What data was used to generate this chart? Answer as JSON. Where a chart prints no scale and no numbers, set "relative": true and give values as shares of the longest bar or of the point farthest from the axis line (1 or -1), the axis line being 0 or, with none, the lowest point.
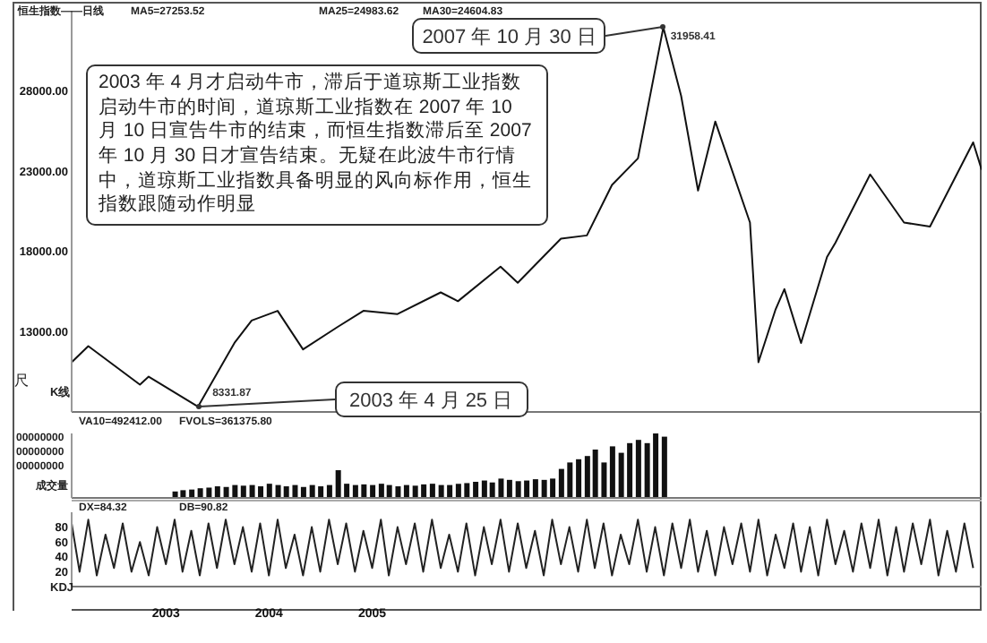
{
  "chart_data": [
    {
      "type": "line",
      "xlim": [
        "2002-02-01",
        "2010-12-01"
      ],
      "ylim": [
        8000,
        33000
      ],
      "yticks": [
        {
          "value": 13000,
          "label": "13000.00"
        },
        {
          "value": 18000,
          "label": "18000.00"
        },
        {
          "value": 23000,
          "label": "23000.00"
        },
        {
          "value": 28000,
          "label": "28000.00"
        }
      ],
      "tick_labels": "y",
      "x": [
        "2002-02",
        "2002-04",
        "2002-10",
        "2002-11",
        "2003-04-25",
        "2003-09",
        "2003-11",
        "2004-02",
        "2004-05",
        "2004-09",
        "2004-12",
        "2005-04",
        "2005-09",
        "2005-11",
        "2006-04",
        "2006-06",
        "2006-11",
        "2007-02",
        "2007-05",
        "2007-08",
        "2007-10-30",
        "2008-01",
        "2008-03",
        "2008-05",
        "2008-09",
        "2008-10",
        "2008-12",
        "2009-01",
        "2009-03",
        "2009-06",
        "2009-07",
        "2009-11",
        "2010-03",
        "2010-06",
        "2010-11",
        "2010-12"
      ],
      "series": [
        {
          "color": "#111111",
          "values": [
            11100,
            12100,
            9700,
            10200,
            8331.87,
            12300,
            13700,
            14300,
            11900,
            13300,
            14300,
            14100,
            15450,
            14900,
            17050,
            16050,
            18800,
            19000,
            22150,
            23800,
            31958.41,
            27700,
            21800,
            26100,
            19800,
            11100,
            14400,
            15650,
            12300,
            17650,
            18550,
            22800,
            19800,
            19550,
            24800,
            23100
          ]
        }
      ],
      "annotations": [
        {
          "text": "2007 年 10 月 30 日",
          "x": "2007-10-30",
          "y": 31958.41
        },
        {
          "text": "31958.41",
          "x": "2007-10-30",
          "y": 31958.41
        },
        {
          "text": "2003 年 4 月 25 日",
          "x": "2003-04-25",
          "y": 8331.87
        },
        {
          "text": "8331.87",
          "x": "2003-04-25",
          "y": 8331.87
        },
        "2003 年 4 月才启动牛市，滞后于道琼斯工业指数启动牛市的时间，道琼斯工业指数在 2007 年 10 月 10 日宣告牛市的结束，而恒生指数滞后至 2007 年 10 月 30 日才宣告结束。无疑在此波牛市行情中，道琼斯工业指数具备明显的风向标作用，恒生指数跟随动作明显",
        "恒生指数——日线",
        "MA5=27253.52",
        "MA25=24983.62",
        "MA30=24604.83",
        "尺",
        "K线"
      ]
    },
    {
      "type": "bar",
      "relative": true,
      "xlim": [
        "2002-02-01",
        "2010-12-01"
      ],
      "tick_labels": false,
      "x": [
        "2003-02",
        "2003-03",
        "2003-04",
        "2003-05",
        "2003-06",
        "2003-07",
        "2003-08",
        "2003-09",
        "2003-10",
        "2003-11",
        "2003-12",
        "2004-01",
        "2004-02",
        "2004-03",
        "2004-04",
        "2004-05",
        "2004-06",
        "2004-07",
        "2004-08",
        "2004-09",
        "2004-10",
        "2004-11",
        "2004-12",
        "2005-01",
        "2005-02",
        "2005-03",
        "2005-04",
        "2005-05",
        "2005-06",
        "2005-07",
        "2005-08",
        "2005-09",
        "2005-10",
        "2005-11",
        "2005-12",
        "2006-01",
        "2006-02",
        "2006-03",
        "2006-04",
        "2006-05",
        "2006-06",
        "2006-07",
        "2006-08",
        "2006-09",
        "2006-10",
        "2006-11",
        "2006-12",
        "2007-01",
        "2007-02",
        "2007-03",
        "2007-04",
        "2007-05",
        "2007-06",
        "2007-07",
        "2007-08",
        "2007-09",
        "2007-10",
        "2007-11"
      ],
      "series": [
        {
          "color": "#111111",
          "values": [
            0.1,
            0.12,
            0.13,
            0.15,
            0.16,
            0.18,
            0.17,
            0.2,
            0.19,
            0.2,
            0.18,
            0.22,
            0.2,
            0.18,
            0.2,
            0.17,
            0.2,
            0.18,
            0.2,
            0.43,
            0.22,
            0.2,
            0.21,
            0.2,
            0.22,
            0.2,
            0.18,
            0.2,
            0.19,
            0.21,
            0.22,
            0.2,
            0.2,
            0.22,
            0.23,
            0.25,
            0.27,
            0.24,
            0.3,
            0.28,
            0.26,
            0.27,
            0.29,
            0.28,
            0.3,
            0.45,
            0.55,
            0.6,
            0.65,
            0.75,
            0.55,
            0.8,
            0.7,
            0.85,
            0.9,
            0.85,
            1,
            0.95
          ]
        }
      ],
      "annotations": [
        "VA10=492412.00",
        "FVOLS=361375.80",
        "00000000",
        "00000000",
        "00000000",
        "成交量"
      ]
    },
    {
      "type": "line",
      "xlim": [
        "2002-02-01",
        "2010-12-01"
      ],
      "ylim": [
        0,
        100
      ],
      "yticks": [
        20,
        40,
        60,
        80
      ],
      "xticks": [
        {
          "value": "2003",
          "label": "2003"
        },
        {
          "value": "2004",
          "label": "2004"
        },
        {
          "value": "2005",
          "label": "2005"
        }
      ],
      "x": [
        "2002-02",
        "2002-03",
        "2002-04",
        "2002-05",
        "2002-06",
        "2002-07",
        "2002-08",
        "2002-09",
        "2002-10",
        "2002-11",
        "2002-12",
        "2003-01",
        "2003-02",
        "2003-03",
        "2003-04",
        "2003-05",
        "2003-06",
        "2003-07",
        "2003-08",
        "2003-09",
        "2003-10",
        "2003-11",
        "2003-12",
        "2004-01",
        "2004-02",
        "2004-03",
        "2004-04",
        "2004-05",
        "2004-06",
        "2004-07",
        "2004-08",
        "2004-09",
        "2004-10",
        "2004-11",
        "2004-12",
        "2005-01",
        "2005-02",
        "2005-03",
        "2005-04",
        "2005-05",
        "2005-06",
        "2005-07",
        "2005-08",
        "2005-09",
        "2005-10",
        "2005-11",
        "2005-12",
        "2006-01",
        "2006-02",
        "2006-03",
        "2006-04",
        "2006-05",
        "2006-06",
        "2006-07",
        "2006-08",
        "2006-09",
        "2006-10",
        "2006-11",
        "2006-12",
        "2007-01",
        "2007-02",
        "2007-03",
        "2007-04",
        "2007-05",
        "2007-06",
        "2007-07",
        "2007-08",
        "2007-09",
        "2007-10",
        "2007-11",
        "2007-12",
        "2008-01",
        "2008-02",
        "2008-03",
        "2008-04",
        "2008-05",
        "2008-06",
        "2008-07",
        "2008-08",
        "2008-09",
        "2008-10",
        "2008-11",
        "2008-12",
        "2009-01",
        "2009-02",
        "2009-03",
        "2009-04",
        "2009-05",
        "2009-06",
        "2009-07",
        "2009-08",
        "2009-09",
        "2009-10",
        "2009-11",
        "2009-12",
        "2010-01",
        "2010-02",
        "2010-03",
        "2010-04",
        "2010-05",
        "2010-06",
        "2010-07",
        "2010-08",
        "2010-09",
        "2010-10",
        "2010-11"
      ],
      "series": [
        {
          "color": "#222222",
          "values": [
            85,
            20,
            90,
            15,
            70,
            25,
            85,
            20,
            60,
            15,
            80,
            30,
            90,
            20,
            75,
            15,
            85,
            25,
            90,
            30,
            80,
            20,
            85,
            15,
            90,
            25,
            70,
            15,
            80,
            20,
            90,
            30,
            85,
            20,
            75,
            25,
            90,
            15,
            80,
            30,
            85,
            20,
            90,
            25,
            70,
            20,
            85,
            15,
            80,
            30,
            90,
            20,
            85,
            25,
            75,
            15,
            90,
            30,
            80,
            20,
            90,
            25,
            85,
            15,
            70,
            30,
            90,
            20,
            80,
            15,
            85,
            25,
            90,
            20,
            75,
            15,
            80,
            30,
            85,
            20,
            90,
            15,
            70,
            25,
            85,
            20,
            80,
            15,
            90,
            30,
            75,
            20,
            85,
            25,
            90,
            15,
            80,
            20,
            85,
            30,
            90,
            15,
            75,
            20,
            85,
            25
          ]
        }
      ],
      "annotations": [
        "DX=84.32",
        "DB=90.82",
        "KDJ"
      ]
    }
  ]
}
